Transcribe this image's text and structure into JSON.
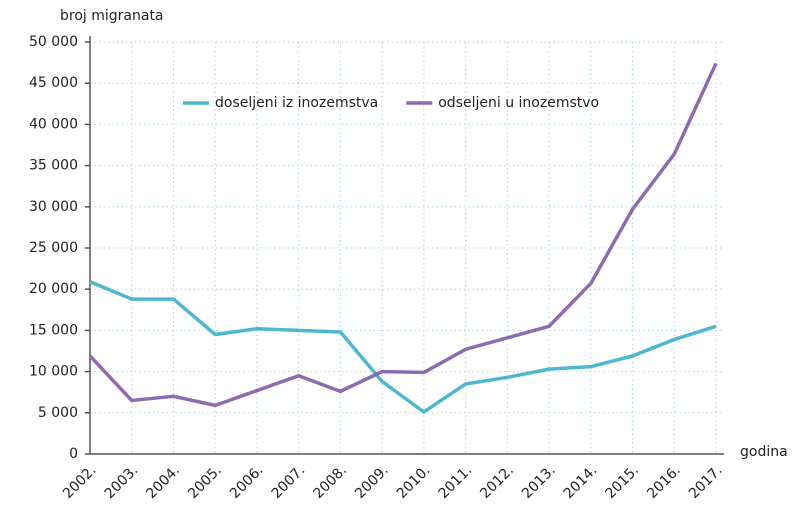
{
  "chart_data": {
    "type": "line",
    "y_label": "broj migranata",
    "x_label": "godina",
    "categories": [
      "2002.",
      "2003.",
      "2004.",
      "2005.",
      "2006.",
      "2007.",
      "2008.",
      "2009.",
      "2010.",
      "2011.",
      "2012.",
      "2013.",
      "2014.",
      "2015.",
      "2016.",
      "2017."
    ],
    "series": [
      {
        "name": "doseljeni iz inozemstva",
        "color": "#4bb8cf",
        "values": [
          20900,
          18800,
          18800,
          14500,
          15200,
          15000,
          14800,
          8800,
          5100,
          8500,
          9300,
          10300,
          10600,
          11900,
          13900,
          15500
        ]
      },
      {
        "name": "odseljeni u inozemstvo",
        "color": "#8e6bb0",
        "values": [
          11900,
          6500,
          7000,
          5900,
          7700,
          9500,
          7600,
          10000,
          9900,
          12700,
          14100,
          15500,
          20700,
          29700,
          36400,
          47400
        ]
      }
    ],
    "ylim": [
      0,
      50000
    ],
    "yticks": [
      0,
      {
        "value": 5000,
        "label": "5 000"
      },
      {
        "value": 10000,
        "label": "10 000"
      },
      {
        "value": 15000,
        "label": "15 000"
      },
      {
        "value": 20000,
        "label": "20 000"
      },
      {
        "value": 25000,
        "label": "25 000"
      },
      {
        "value": 30000,
        "label": "30 000"
      },
      {
        "value": 35000,
        "label": "35 000"
      },
      {
        "value": 40000,
        "label": "40 000"
      },
      {
        "value": 45000,
        "label": "45 000"
      },
      {
        "value": 50000,
        "label": "50 000"
      }
    ],
    "grid": true,
    "legend": "top"
  }
}
